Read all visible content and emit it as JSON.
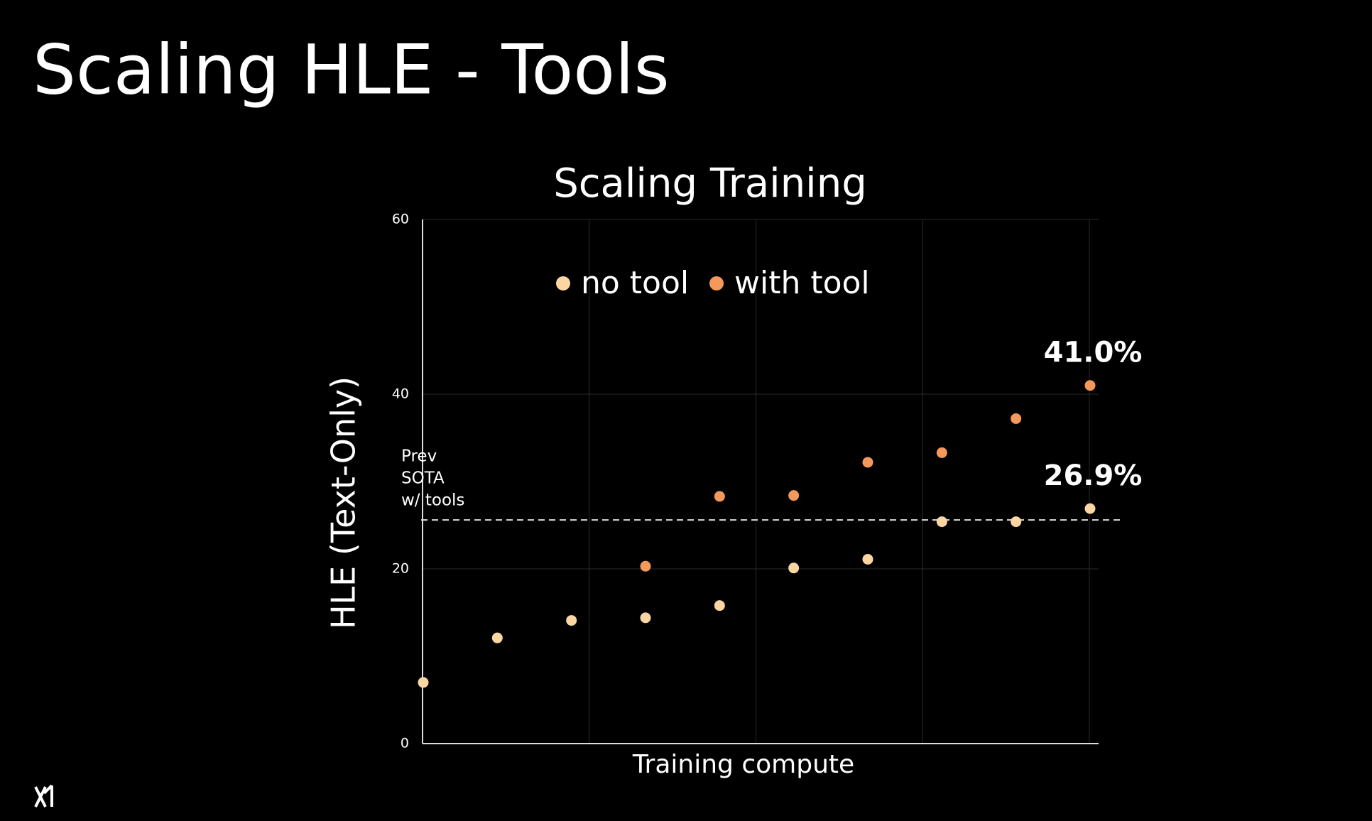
{
  "header": {
    "title": "Scaling HLE - Tools"
  },
  "chart_data": {
    "type": "scatter",
    "title": "Scaling Training",
    "x_label": "Training compute",
    "y_label": "HLE (Text-Only)",
    "categories": [
      null,
      null,
      null,
      null,
      null,
      null,
      null,
      null,
      null,
      null
    ],
    "series": [
      {
        "name": "no tool",
        "color": "#fbd6a3",
        "label_color": "#f7c896",
        "values": [
          7.0,
          12.1,
          14.1,
          14.4,
          15.8,
          20.1,
          21.1,
          25.4,
          25.4,
          26.9
        ],
        "value_labels": [
          null,
          null,
          null,
          null,
          null,
          null,
          null,
          null,
          null,
          "26.9%"
        ]
      },
      {
        "name": "with tool",
        "color": "#f5985c",
        "label_color": "#f5a46c",
        "values": [
          null,
          null,
          null,
          20.3,
          28.3,
          28.4,
          32.2,
          33.3,
          37.2,
          41.0
        ],
        "value_labels": [
          null,
          null,
          null,
          null,
          null,
          null,
          null,
          null,
          null,
          "41.0%"
        ]
      }
    ],
    "reference_line": {
      "value": 25.6,
      "label": [
        "Prev",
        "SOTA",
        "w/ tools"
      ]
    },
    "ylim": [
      0,
      60
    ],
    "yticks": [
      0,
      20,
      40,
      60
    ],
    "grid": true
  }
}
